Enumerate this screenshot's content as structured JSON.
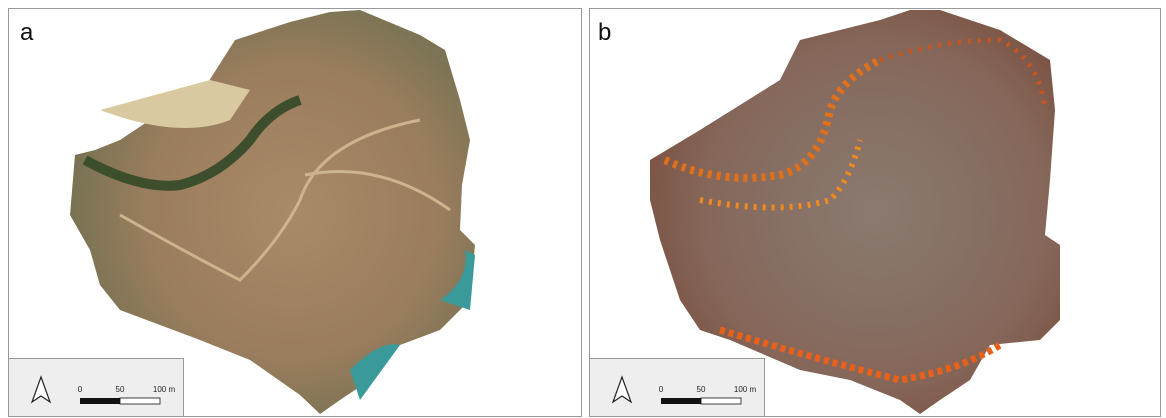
{
  "panels": [
    {
      "label": "a",
      "scale_bar": {
        "ticks": [
          "0",
          "50",
          "100 m"
        ]
      }
    },
    {
      "label": "b",
      "scale_bar": {
        "ticks": [
          "0",
          "50",
          "100 m"
        ]
      }
    }
  ]
}
